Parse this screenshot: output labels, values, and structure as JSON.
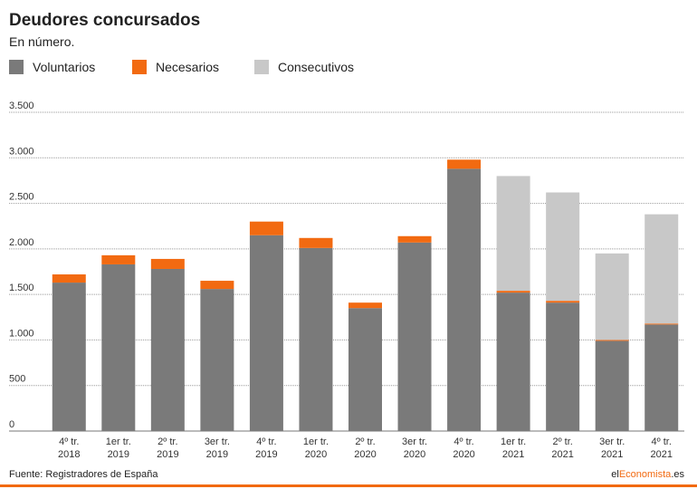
{
  "chart_data": {
    "type": "stacked-bar",
    "title": "Deudores concursados",
    "subtitle": "En número.",
    "categories": [
      [
        "4º tr.",
        "2018"
      ],
      [
        "1er tr.",
        "2019"
      ],
      [
        "2º tr.",
        "2019"
      ],
      [
        "3er tr.",
        "2019"
      ],
      [
        "4º tr.",
        "2019"
      ],
      [
        "1er tr.",
        "2020"
      ],
      [
        "2º tr.",
        "2020"
      ],
      [
        "3er tr.",
        "2020"
      ],
      [
        "4º tr.",
        "2020"
      ],
      [
        "1er tr.",
        "2021"
      ],
      [
        "2º tr.",
        "2021"
      ],
      [
        "3er tr.",
        "2021"
      ],
      [
        "4º tr.",
        "2021"
      ]
    ],
    "series": [
      {
        "name": "Voluntarios",
        "color": "#7a7a7a",
        "values": [
          1630,
          1830,
          1780,
          1560,
          2150,
          2010,
          1350,
          2070,
          2880,
          1520,
          1410,
          990,
          1170
        ]
      },
      {
        "name": "Necesarios",
        "color": "#f26a11",
        "values": [
          90,
          100,
          110,
          90,
          150,
          110,
          60,
          70,
          100,
          20,
          20,
          10,
          10
        ]
      },
      {
        "name": "Consecutivos",
        "color": "#c8c8c8",
        "values": [
          null,
          null,
          null,
          null,
          null,
          null,
          null,
          null,
          null,
          1260,
          1190,
          950,
          1200
        ]
      }
    ],
    "ylim": [
      0,
      3500
    ],
    "yticks": [
      0,
      500,
      {
        "value": 1000,
        "label": "1.000"
      },
      {
        "value": 1500,
        "label": "1.500"
      },
      {
        "value": 2000,
        "label": "2.000"
      },
      {
        "value": 2500,
        "label": "2.500"
      },
      {
        "value": 3000,
        "label": "3.000"
      },
      {
        "value": 3500,
        "label": "3.500"
      }
    ],
    "grid": true
  },
  "footer": {
    "source": "Fuente: Registradores de España",
    "brand": [
      "el",
      "Economista",
      ".es"
    ]
  }
}
